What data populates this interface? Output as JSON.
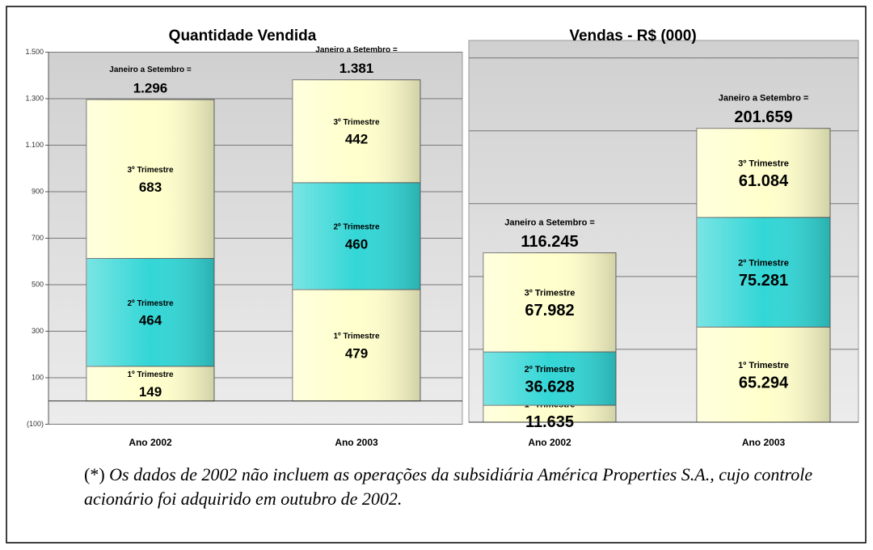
{
  "chart_data": [
    {
      "type": "bar",
      "stacked": true,
      "title": "Quantidade Vendida",
      "categories": [
        "Ano 2002",
        "Ano 2003"
      ],
      "ylim": [
        -100,
        1500
      ],
      "yticks": [
        {
          "value": -100,
          "label": "(100)"
        },
        100,
        300,
        500,
        700,
        900,
        {
          "value": 1100,
          "label": "1.100"
        },
        {
          "value": 1300,
          "label": "1.300"
        },
        {
          "value": 1500,
          "label": "1.500"
        }
      ],
      "grid": true,
      "show_tick_labels": true,
      "series": [
        {
          "name": "1º Trimestre",
          "color": "#ffffcc",
          "values": [
            149,
            479
          ]
        },
        {
          "name": "2º Trimestre",
          "color": "#33d6d6",
          "values": [
            464,
            460
          ]
        },
        {
          "name": "3º Trimestre",
          "color": "#ffffcc",
          "values": [
            683,
            442
          ]
        }
      ],
      "totals": {
        "label": "Janeiro a Setembro =",
        "values": [
          1296,
          1381
        ],
        "value_labels": [
          "1.296",
          "1.381"
        ]
      }
    },
    {
      "type": "bar",
      "stacked": true,
      "title": "Vendas - R$ (000)",
      "categories": [
        "Ano 2002",
        "Ano 2003"
      ],
      "ylim": [
        0,
        262000
      ],
      "yticks": [
        0,
        50000,
        100000,
        150000,
        200000,
        250000
      ],
      "grid": true,
      "show_tick_labels": false,
      "series": [
        {
          "name": "1º Trimestre",
          "color": "#ffffcc",
          "values": [
            11635,
            65294
          ],
          "value_labels": [
            "11.635",
            "65.294"
          ]
        },
        {
          "name": "2º Trimestre",
          "color": "#33d6d6",
          "values": [
            36628,
            75281
          ],
          "value_labels": [
            "36.628",
            "75.281"
          ]
        },
        {
          "name": "3º Trimestre",
          "color": "#ffffcc",
          "values": [
            67982,
            61084
          ],
          "value_labels": [
            "67.982",
            "61.084"
          ]
        }
      ],
      "totals": {
        "label": "Janeiro a Setembro =",
        "values": [
          116245,
          201659
        ],
        "value_labels": [
          "116.245",
          "201.659"
        ]
      }
    }
  ],
  "footnote": {
    "marker": "(*)",
    "text": "Os dados de 2002 não incluem as operações da subsidiária América Properties S.A., cujo controle acionário foi adquirido em outubro de 2002."
  }
}
